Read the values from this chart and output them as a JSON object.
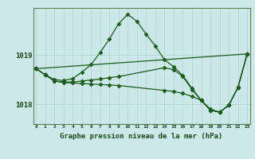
{
  "title": "Graphe pression niveau de la mer (hPa)",
  "bg_color": "#cce8e8",
  "line_color": "#1a5c1a",
  "grid_color": "#b0d4d4",
  "text_color": "#1a4a1a",
  "xlim": [
    0,
    23
  ],
  "ylim": [
    1017.6,
    1019.95
  ],
  "yticks": [
    1018,
    1019
  ],
  "xticks": [
    0,
    1,
    2,
    3,
    4,
    5,
    6,
    7,
    8,
    9,
    10,
    11,
    12,
    13,
    14,
    15,
    16,
    17,
    18,
    19,
    20,
    21,
    22,
    23
  ],
  "series0_x": [
    0,
    1,
    2,
    3,
    4,
    5,
    6,
    7,
    8,
    9,
    10,
    11,
    12,
    13,
    14,
    15,
    16,
    17,
    18,
    19,
    20,
    21,
    22,
    23
  ],
  "series0_y": [
    1018.72,
    1018.6,
    1018.5,
    1018.48,
    1018.52,
    1018.65,
    1018.8,
    1019.05,
    1019.32,
    1019.63,
    1019.82,
    1019.68,
    1019.42,
    1019.18,
    1018.9,
    1018.76,
    1018.58,
    1018.32,
    1018.08,
    1017.88,
    1017.84,
    1017.98,
    1018.34,
    1019.02
  ],
  "series1_x": [
    0,
    1,
    2,
    3,
    4,
    5,
    6,
    7,
    8,
    9,
    14,
    15,
    16,
    17,
    18,
    19,
    20,
    21,
    22,
    23
  ],
  "series1_y": [
    1018.72,
    1018.6,
    1018.47,
    1018.45,
    1018.45,
    1018.47,
    1018.49,
    1018.51,
    1018.54,
    1018.56,
    1018.74,
    1018.7,
    1018.56,
    1018.3,
    1018.08,
    1017.88,
    1017.84,
    1017.98,
    1018.34,
    1019.02
  ],
  "series2_x": [
    0,
    23
  ],
  "series2_y": [
    1018.72,
    1019.02
  ],
  "series3_x": [
    0,
    1,
    2,
    3,
    4,
    5,
    6,
    7,
    8,
    9,
    14,
    15,
    16,
    17,
    18,
    19,
    20,
    21,
    22,
    23
  ],
  "series3_y": [
    1018.72,
    1018.6,
    1018.47,
    1018.44,
    1018.43,
    1018.42,
    1018.41,
    1018.4,
    1018.39,
    1018.38,
    1018.28,
    1018.26,
    1018.22,
    1018.16,
    1018.08,
    1017.9,
    1017.84,
    1017.98,
    1018.34,
    1019.02
  ]
}
